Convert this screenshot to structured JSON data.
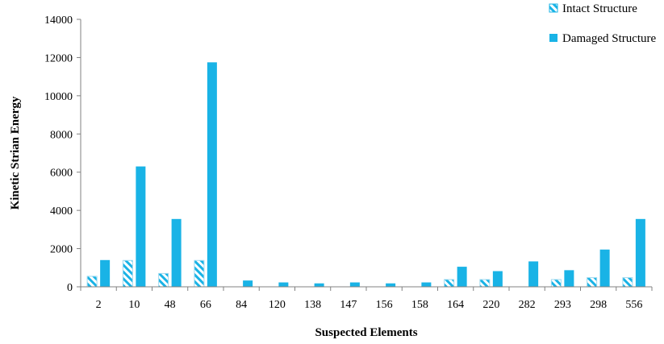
{
  "chart_data": {
    "type": "bar",
    "title": "",
    "xlabel": "Suspected Elements",
    "ylabel": "Kinetic Strian Energy",
    "ylim": [
      0,
      14000
    ],
    "yticks": [
      0,
      2000,
      4000,
      6000,
      8000,
      10000,
      12000,
      14000
    ],
    "grid": false,
    "legend_position": "top-right",
    "categories": [
      "2",
      "10",
      "48",
      "66",
      "84",
      "120",
      "138",
      "147",
      "156",
      "158",
      "164",
      "220",
      "282",
      "293",
      "298",
      "556"
    ],
    "series": [
      {
        "name": "Intact Structure",
        "color": "#19b3e6",
        "pattern": "diagonal-hatch",
        "values": [
          550,
          1380,
          700,
          1380,
          0,
          0,
          0,
          0,
          0,
          0,
          380,
          380,
          0,
          380,
          480,
          480
        ]
      },
      {
        "name": "Damaged Structure",
        "color": "#19b3e6",
        "pattern": "solid",
        "values": [
          1400,
          6300,
          3550,
          11750,
          330,
          230,
          180,
          230,
          180,
          230,
          1050,
          820,
          1330,
          870,
          1950,
          3550
        ]
      }
    ]
  }
}
